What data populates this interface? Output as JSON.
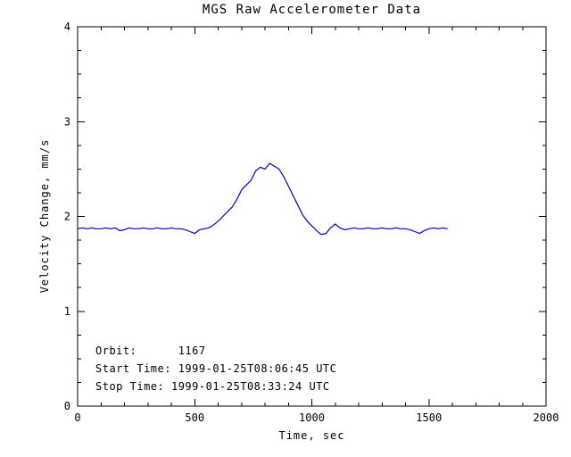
{
  "chart_data": {
    "type": "line",
    "title": "MGS Raw Accelerometer Data",
    "xlabel": "Time, sec",
    "ylabel": "Velocity Change, mm/s",
    "xlim": [
      0,
      2000
    ],
    "ylim": [
      0,
      4
    ],
    "x_ticks": [
      0,
      500,
      1000,
      1500,
      2000
    ],
    "y_ticks": [
      0,
      1,
      2,
      3,
      4
    ],
    "x_minor_step": 100,
    "y_minor_step": 0.25,
    "grid": false,
    "legend": false,
    "line_color": "#0000cc",
    "axis_color": "#000000",
    "background_color": "#ffffff",
    "series": [
      {
        "name": "Velocity Change",
        "x": [
          0,
          20,
          40,
          60,
          80,
          100,
          120,
          140,
          160,
          180,
          200,
          220,
          240,
          260,
          280,
          300,
          320,
          340,
          360,
          380,
          400,
          420,
          440,
          460,
          480,
          500,
          520,
          540,
          560,
          580,
          600,
          620,
          640,
          660,
          680,
          700,
          720,
          740,
          760,
          780,
          800,
          820,
          840,
          860,
          880,
          900,
          920,
          940,
          960,
          980,
          1000,
          1020,
          1040,
          1060,
          1080,
          1100,
          1120,
          1140,
          1160,
          1180,
          1200,
          1220,
          1240,
          1260,
          1280,
          1300,
          1320,
          1340,
          1360,
          1380,
          1400,
          1420,
          1440,
          1460,
          1480,
          1500,
          1520,
          1540,
          1560,
          1580
        ],
        "y": [
          1.87,
          1.88,
          1.87,
          1.88,
          1.87,
          1.87,
          1.88,
          1.87,
          1.88,
          1.85,
          1.86,
          1.88,
          1.87,
          1.87,
          1.88,
          1.87,
          1.87,
          1.88,
          1.87,
          1.87,
          1.88,
          1.87,
          1.87,
          1.86,
          1.84,
          1.82,
          1.86,
          1.87,
          1.88,
          1.91,
          1.95,
          2.0,
          2.05,
          2.1,
          2.18,
          2.28,
          2.33,
          2.38,
          2.48,
          2.52,
          2.5,
          2.56,
          2.53,
          2.5,
          2.42,
          2.32,
          2.22,
          2.12,
          2.02,
          1.95,
          1.9,
          1.85,
          1.81,
          1.82,
          1.88,
          1.92,
          1.88,
          1.86,
          1.87,
          1.88,
          1.87,
          1.87,
          1.88,
          1.87,
          1.87,
          1.88,
          1.87,
          1.87,
          1.88,
          1.87,
          1.87,
          1.86,
          1.84,
          1.82,
          1.85,
          1.87,
          1.88,
          1.87,
          1.88,
          1.87
        ]
      }
    ],
    "annotations": [
      {
        "label": "orbit",
        "text": "Orbit:      1167"
      },
      {
        "label": "start_time",
        "text": "Start Time: 1999-01-25T08:06:45 UTC"
      },
      {
        "label": "stop_time",
        "text": "Stop Time: 1999-01-25T08:33:24 UTC"
      }
    ]
  }
}
